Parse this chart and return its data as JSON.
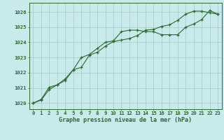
{
  "x": [
    0,
    1,
    2,
    3,
    4,
    5,
    6,
    7,
    8,
    9,
    10,
    11,
    12,
    13,
    14,
    15,
    16,
    17,
    18,
    19,
    20,
    21,
    22,
    23
  ],
  "line1": [
    1020.0,
    1020.2,
    1020.9,
    1021.2,
    1021.5,
    1022.2,
    1023.0,
    1023.2,
    1023.6,
    1024.0,
    1024.1,
    1024.7,
    1024.8,
    1024.8,
    1024.7,
    1024.7,
    1024.5,
    1024.5,
    1024.5,
    1025.0,
    1025.2,
    1025.5,
    1026.1,
    1025.85
  ],
  "line2": [
    1020.0,
    1020.25,
    1021.05,
    1021.2,
    1021.6,
    1022.2,
    1022.35,
    1023.15,
    1023.35,
    1023.75,
    1024.05,
    1024.15,
    1024.25,
    1024.45,
    1024.8,
    1024.85,
    1025.05,
    1025.15,
    1025.45,
    1025.85,
    1026.05,
    1026.05,
    1025.95,
    1025.85
  ],
  "line_color": "#2d6a2d",
  "bg_color": "#c8eaea",
  "grid_color": "#a0c8c8",
  "title": "Graphe pression niveau de la mer (hPa)",
  "ylim": [
    1019.6,
    1026.6
  ],
  "yticks": [
    1020,
    1021,
    1022,
    1023,
    1024,
    1025,
    1026
  ],
  "xlim": [
    -0.5,
    23.5
  ],
  "xticks": [
    0,
    1,
    2,
    3,
    4,
    5,
    6,
    7,
    8,
    9,
    10,
    11,
    12,
    13,
    14,
    15,
    16,
    17,
    18,
    19,
    20,
    21,
    22,
    23
  ],
  "xlabel_fontsize": 6.0,
  "tick_fontsize": 5.2
}
